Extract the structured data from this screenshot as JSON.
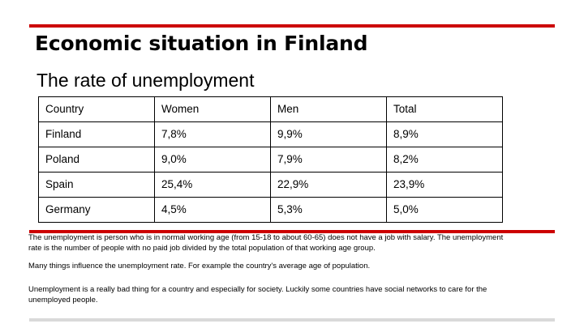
{
  "slide": {
    "title": "Economic situation in Finland",
    "subtitle": "The rate of unemployment"
  },
  "table": {
    "headers": [
      "Country",
      "Women",
      "Men",
      "Total"
    ],
    "rows": [
      [
        "Finland",
        "7,8%",
        "9,9%",
        "8,9%"
      ],
      [
        "Poland",
        "9,0%",
        "7,9%",
        "8,2%"
      ],
      [
        "Spain",
        "25,4%",
        "22,9%",
        "23,9%"
      ],
      [
        "Germany",
        "4,5%",
        "5,3%",
        "5,0%"
      ]
    ]
  },
  "paragraphs": [
    "The unemployment is person who is in normal working age (from 15-18 to about 60-65) does not have a job with salary. The unemployment rate is the number of people with no paid job divided by the total population of that working age group.",
    "Many things influence the unemployment rate. For example the country's average age of population.",
    "Unemployment is a really bad thing for a country and especially for society. Luckily some countries have social networks to care for the unemployed people."
  ],
  "colors": {
    "accent_bar": "#cc0000",
    "footer_bar": "#d9d9d9"
  }
}
